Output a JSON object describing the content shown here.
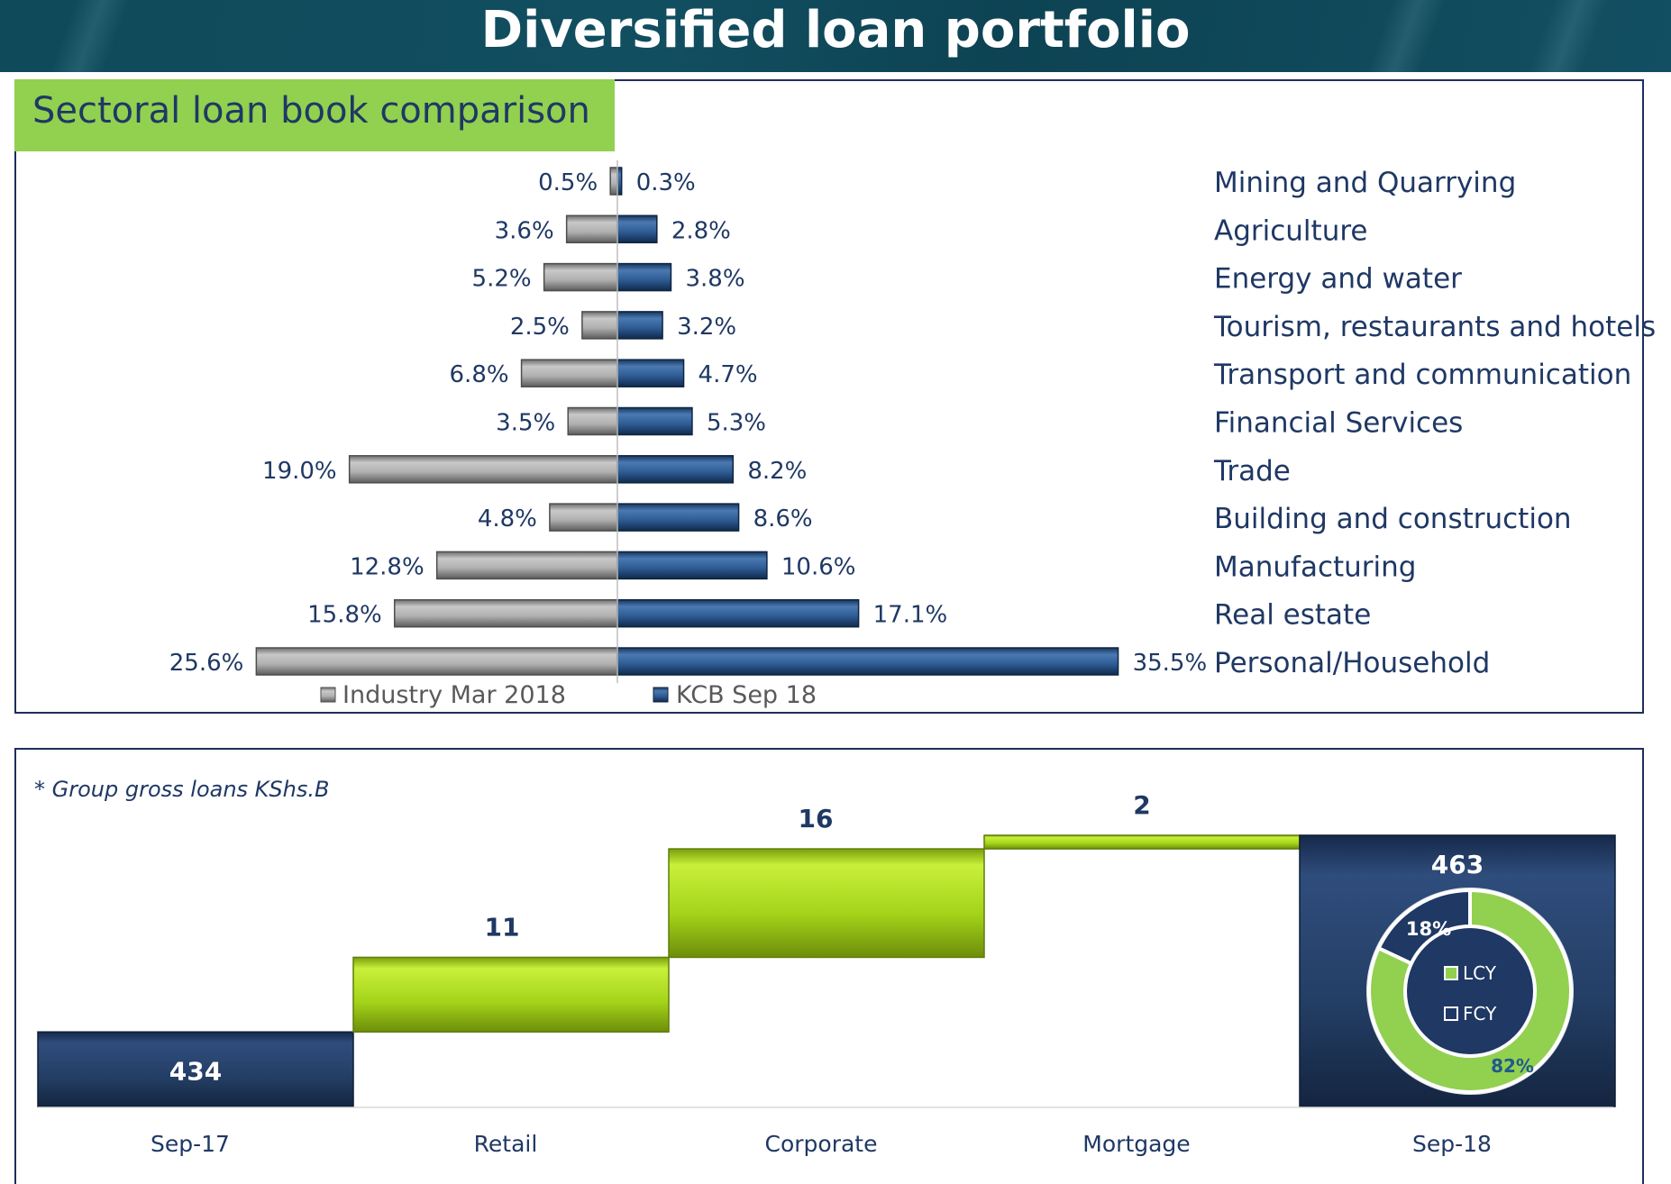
{
  "header": {
    "title": "Diversified loan portfolio"
  },
  "section": {
    "title": "Sectoral loan book comparison"
  },
  "chart_data": [
    {
      "type": "bar",
      "orientation": "horizontal-diverging",
      "categories": [
        "Mining and Quarrying",
        "Agriculture",
        "Energy and water",
        "Tourism, restaurants and hotels",
        "Transport and communication",
        "Financial Services",
        "Trade",
        "Building and construction",
        "Manufacturing",
        "Real estate",
        "Personal/Household"
      ],
      "series": [
        {
          "name": "Industry Mar 2018",
          "values": [
            0.5,
            3.6,
            5.2,
            2.5,
            6.8,
            3.5,
            19.0,
            4.8,
            12.8,
            15.8,
            25.6
          ],
          "color": "#a6a6a6"
        },
        {
          "name": "KCB Sep 18",
          "values": [
            0.3,
            2.8,
            3.8,
            3.2,
            4.7,
            5.3,
            8.2,
            8.6,
            10.6,
            17.1,
            35.5
          ],
          "color": "#2e5c94"
        }
      ],
      "value_labels": {
        "Industry Mar 2018": [
          "0.5%",
          "3.6%",
          "5.2%",
          "2.5%",
          "6.8%",
          "3.5%",
          "19.0%",
          "4.8%",
          "12.8%",
          "15.8%",
          "25.6%"
        ],
        "KCB Sep 18": [
          "0.3%",
          "2.8%",
          "3.8%",
          "3.2%",
          "4.7%",
          "5.3%",
          "8.2%",
          "8.6%",
          "10.6%",
          "17.1%",
          "35.5%"
        ]
      },
      "unit": "%",
      "legend": "bottom"
    },
    {
      "type": "waterfall",
      "note": "* Group gross loans KShs.B",
      "categories": [
        "Sep-17",
        "Retail",
        "Corporate",
        "Mortgage",
        "Sep-18"
      ],
      "values": [
        434,
        11,
        16,
        2,
        463
      ],
      "value_labels": [
        "434",
        "11",
        "16",
        "2",
        "463"
      ],
      "kinds": [
        "total",
        "delta",
        "delta",
        "delta",
        "total"
      ],
      "colors": {
        "total": "#1f3864",
        "delta": "#a4d31a"
      }
    },
    {
      "type": "pie",
      "variant": "donut",
      "labels": [
        "LCY",
        "FCY"
      ],
      "values": [
        82,
        18
      ],
      "value_labels": [
        "82%",
        "18%"
      ],
      "colors": [
        "#92d050",
        "#1f3864"
      ]
    }
  ]
}
